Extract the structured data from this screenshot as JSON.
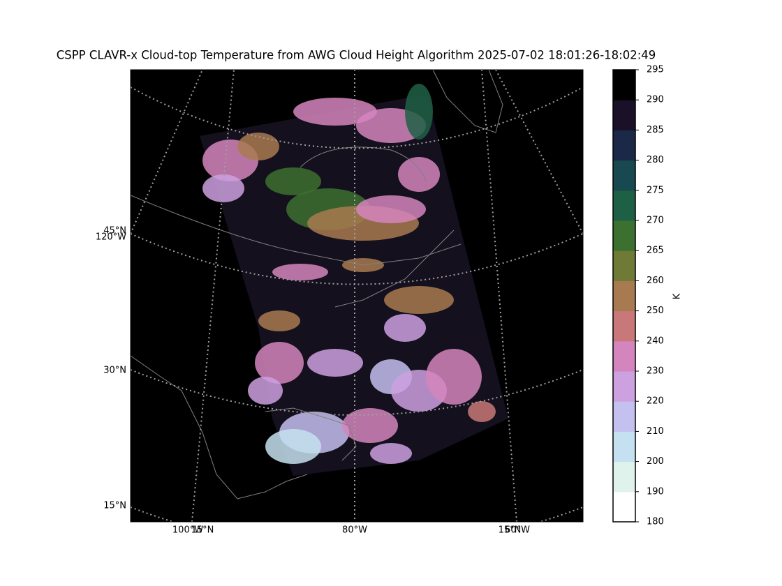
{
  "title": "CSPP CLAVR-x Cloud-top Temperature from AWG Cloud Height Algorithm 2025-07-02 18:01:26-18:02:49",
  "map": {
    "lat_labels": [
      "45°N",
      "30°N",
      "15°N"
    ],
    "lon_labels_left": [
      "120°W"
    ],
    "bottom_labels": [
      "100°W",
      "15°N",
      "80°W",
      "15°N",
      "60°W"
    ]
  },
  "colorbar": {
    "label": "K",
    "ticks": [
      180,
      190,
      200,
      210,
      220,
      230,
      240,
      250,
      260,
      265,
      270,
      275,
      280,
      285,
      290,
      295
    ],
    "colors": [
      "#ffffff",
      "#dff2ec",
      "#c5e0f0",
      "#c4c0f0",
      "#cda0e0",
      "#d585bd",
      "#c87878",
      "#a87a50",
      "#6e7a35",
      "#3c7030",
      "#1e6045",
      "#184850",
      "#1c2848",
      "#1a1028",
      "#000000"
    ]
  }
}
